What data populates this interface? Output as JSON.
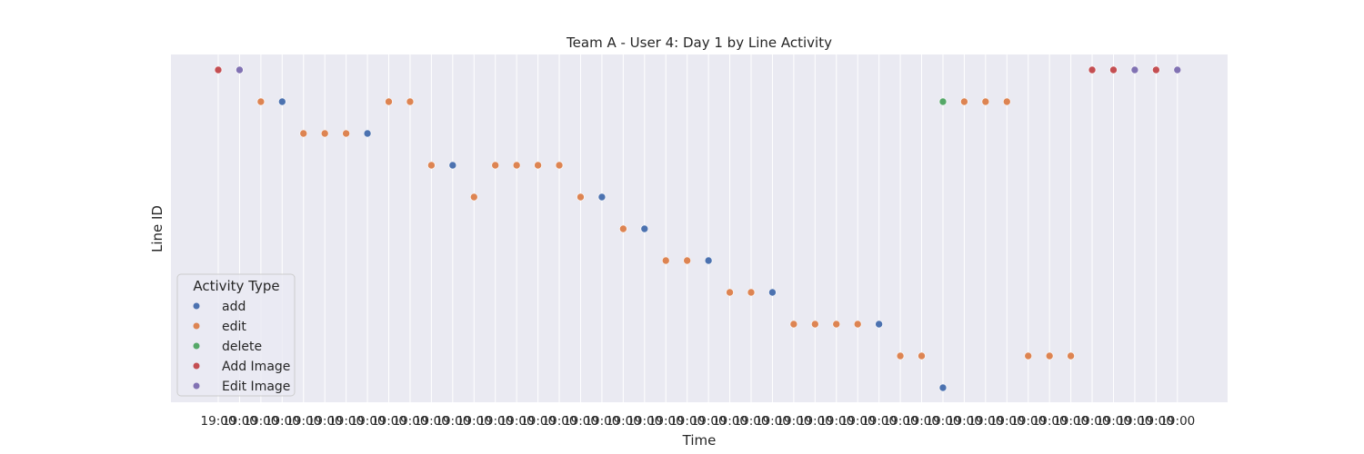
{
  "chart_data": {
    "type": "scatter",
    "title": "Team A - User 4: Day 1 by Line Activity",
    "xlabel": "Time",
    "ylabel": "Line ID",
    "grid": true,
    "y_ticks_shown": false,
    "legend": {
      "title": "Activity Type",
      "placement": "lower-left",
      "entries": [
        {
          "name": "add",
          "color": "#4c72b0"
        },
        {
          "name": "edit",
          "color": "#dd8452"
        },
        {
          "name": "delete",
          "color": "#55a868"
        },
        {
          "name": "Add Image",
          "color": "#c44e52"
        },
        {
          "name": "Edit Image",
          "color": "#8172b3"
        }
      ]
    },
    "x_tick_labels": [
      "19:00",
      "19:00",
      "19:00",
      "19:00",
      "19:00",
      "19:00",
      "19:00",
      "19:00",
      "19:00",
      "19:00",
      "19:00",
      "19:00",
      "19:00",
      "19:00",
      "19:00",
      "19:00",
      "19:00",
      "19:00",
      "19:00",
      "19:00",
      "19:00",
      "19:00",
      "19:00",
      "19:00",
      "19:00",
      "19:00",
      "19:00",
      "19:00",
      "19:00",
      "19:00",
      "19:00",
      "19:00",
      "19:00",
      "19:00",
      "19:00",
      "19:00",
      "19:00",
      "19:00",
      "19:00",
      "19:00",
      "19:00",
      "19:00",
      "19:00",
      "19:00",
      "19:00",
      "19:00"
    ],
    "points": [
      {
        "x": 0,
        "y": 0,
        "type": "Add Image"
      },
      {
        "x": 1,
        "y": 0,
        "type": "Edit Image"
      },
      {
        "x": 2,
        "y": 1,
        "type": "edit"
      },
      {
        "x": 3,
        "y": 1,
        "type": "add"
      },
      {
        "x": 4,
        "y": 2,
        "type": "edit"
      },
      {
        "x": 5,
        "y": 2,
        "type": "edit"
      },
      {
        "x": 6,
        "y": 2,
        "type": "edit"
      },
      {
        "x": 7,
        "y": 2,
        "type": "add"
      },
      {
        "x": 8,
        "y": 1,
        "type": "edit"
      },
      {
        "x": 9,
        "y": 1,
        "type": "edit"
      },
      {
        "x": 10,
        "y": 3,
        "type": "edit"
      },
      {
        "x": 11,
        "y": 3,
        "type": "add"
      },
      {
        "x": 12,
        "y": 4,
        "type": "edit"
      },
      {
        "x": 13,
        "y": 3,
        "type": "edit"
      },
      {
        "x": 14,
        "y": 3,
        "type": "edit"
      },
      {
        "x": 15,
        "y": 3,
        "type": "edit"
      },
      {
        "x": 16,
        "y": 3,
        "type": "edit"
      },
      {
        "x": 17,
        "y": 4,
        "type": "edit"
      },
      {
        "x": 18,
        "y": 4,
        "type": "add"
      },
      {
        "x": 19,
        "y": 5,
        "type": "edit"
      },
      {
        "x": 20,
        "y": 5,
        "type": "add"
      },
      {
        "x": 21,
        "y": 6,
        "type": "edit"
      },
      {
        "x": 22,
        "y": 6,
        "type": "edit"
      },
      {
        "x": 23,
        "y": 6,
        "type": "add"
      },
      {
        "x": 24,
        "y": 7,
        "type": "edit"
      },
      {
        "x": 25,
        "y": 7,
        "type": "edit"
      },
      {
        "x": 26,
        "y": 7,
        "type": "add"
      },
      {
        "x": 27,
        "y": 8,
        "type": "edit"
      },
      {
        "x": 28,
        "y": 8,
        "type": "edit"
      },
      {
        "x": 29,
        "y": 8,
        "type": "edit"
      },
      {
        "x": 30,
        "y": 8,
        "type": "edit"
      },
      {
        "x": 31,
        "y": 8,
        "type": "add"
      },
      {
        "x": 32,
        "y": 9,
        "type": "edit"
      },
      {
        "x": 33,
        "y": 9,
        "type": "edit"
      },
      {
        "x": 34,
        "y": 10,
        "type": "add"
      },
      {
        "x": 34,
        "y": 1,
        "type": "delete"
      },
      {
        "x": 35,
        "y": 1,
        "type": "edit"
      },
      {
        "x": 36,
        "y": 1,
        "type": "edit"
      },
      {
        "x": 37,
        "y": 1,
        "type": "edit"
      },
      {
        "x": 38,
        "y": 9,
        "type": "edit"
      },
      {
        "x": 39,
        "y": 9,
        "type": "edit"
      },
      {
        "x": 40,
        "y": 9,
        "type": "edit"
      },
      {
        "x": 41,
        "y": 0,
        "type": "Add Image"
      },
      {
        "x": 42,
        "y": 0,
        "type": "Add Image"
      },
      {
        "x": 43,
        "y": 0,
        "type": "Edit Image"
      },
      {
        "x": 44,
        "y": 0,
        "type": "Add Image"
      },
      {
        "x": 45,
        "y": 0,
        "type": "Edit Image"
      }
    ]
  }
}
